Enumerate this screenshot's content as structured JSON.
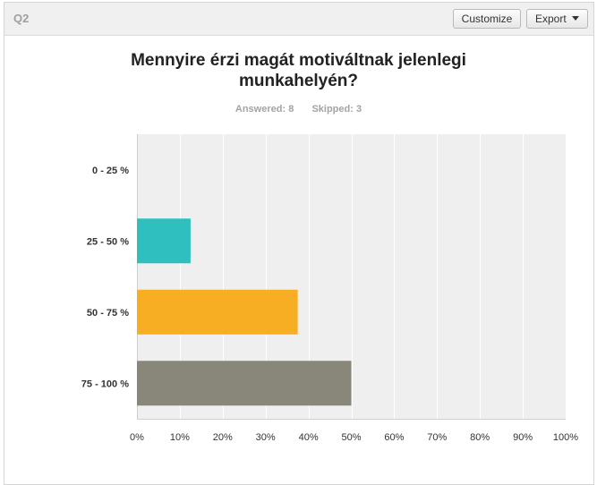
{
  "header": {
    "question_label": "Q2",
    "customize_label": "Customize",
    "export_label": "Export"
  },
  "summary": {
    "answered_label": "Answered:",
    "answered_count": "8",
    "skipped_label": "Skipped:",
    "skipped_count": "3"
  },
  "chart_data": {
    "type": "bar",
    "orientation": "horizontal",
    "title": "Mennyire érzi magát motiváltnak jelenlegi munkahelyén?",
    "title_lines": [
      "Mennyire érzi magát motiváltnak jelenlegi",
      "munkahelyén?"
    ],
    "categories": [
      "0 - 25 %",
      "25 - 50 %",
      "50 - 75 %",
      "75 - 100 %"
    ],
    "values": [
      0,
      12.5,
      37.5,
      50
    ],
    "colors": [
      "#3ab5d0",
      "#2fbfbf",
      "#f7ae22",
      "#88877a"
    ],
    "xlim": [
      0,
      100
    ],
    "xticks": [
      0,
      10,
      20,
      30,
      40,
      50,
      60,
      70,
      80,
      90,
      100
    ],
    "xtick_labels": [
      "0%",
      "10%",
      "20%",
      "30%",
      "40%",
      "50%",
      "60%",
      "70%",
      "80%",
      "90%",
      "100%"
    ],
    "grid": true,
    "legend": "none"
  }
}
